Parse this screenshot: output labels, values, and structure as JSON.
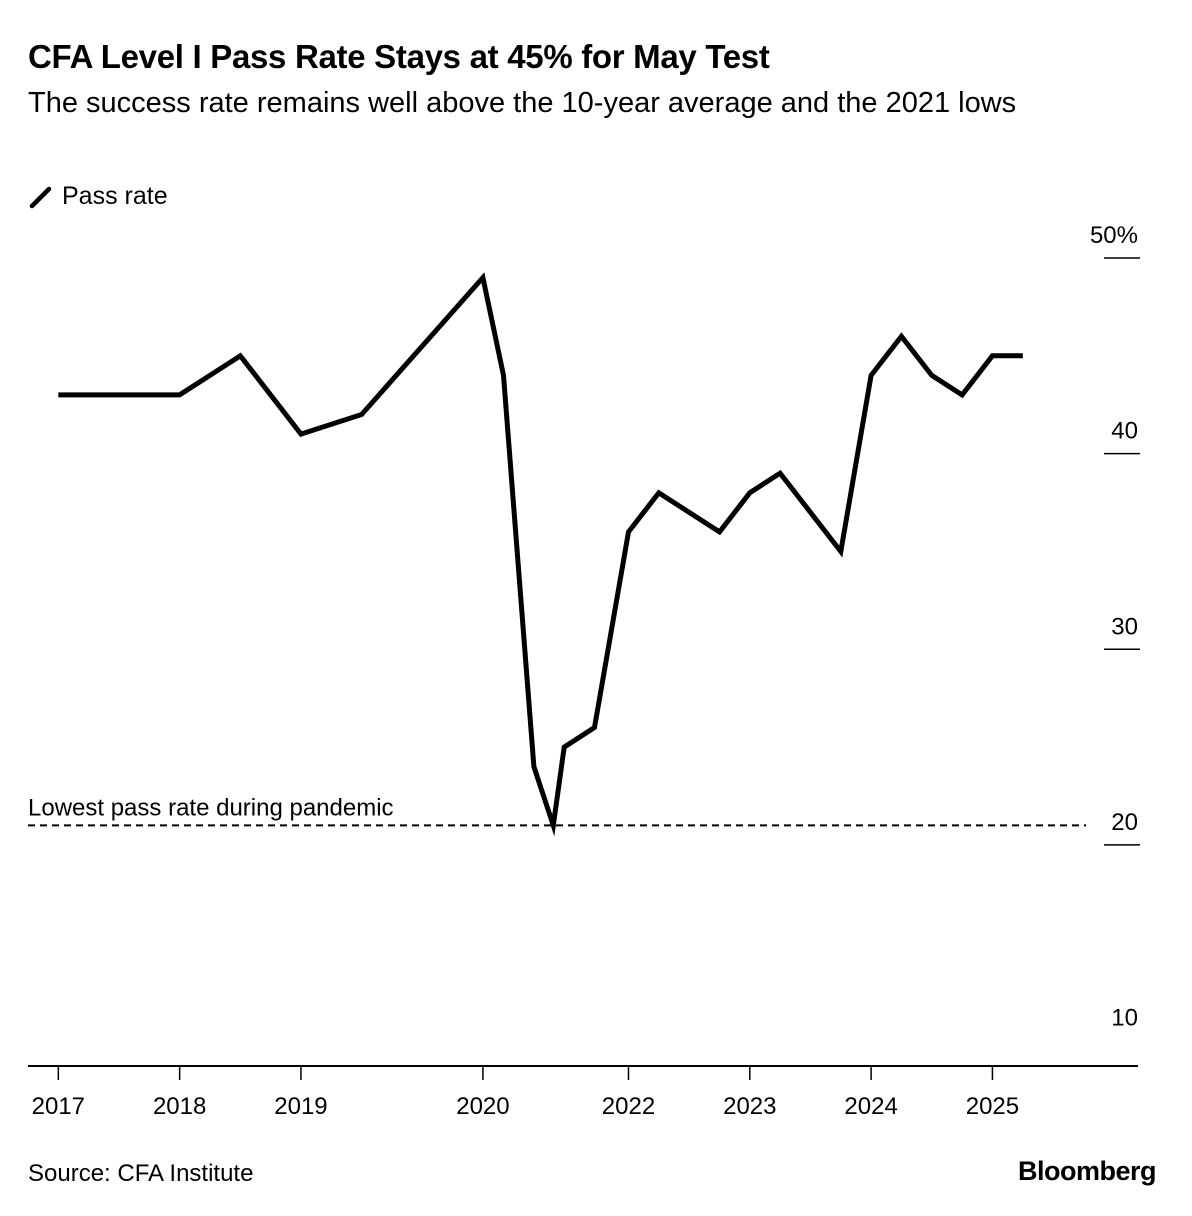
{
  "title": "CFA Level I Pass Rate Stays at 45% for May Test",
  "subtitle": "The success rate remains well above the 10-year average and the 2021 lows",
  "legend_label": "Pass rate",
  "source": "Source: CFA Institute",
  "brand": "Bloomberg",
  "chart_data": {
    "type": "line",
    "title": "CFA Level I Pass Rate Stays at 45% for May Test",
    "ylabel": "",
    "xlabel": "",
    "ylim": [
      8.7,
      50
    ],
    "xlim": [
      2016.75,
      2025.9
    ],
    "y_ticks": [
      {
        "value": 50,
        "label": "50%"
      },
      {
        "value": 40,
        "label": "40"
      },
      {
        "value": 30,
        "label": "30"
      },
      {
        "value": 20,
        "label": "20"
      },
      {
        "value": 10,
        "label": "10"
      }
    ],
    "x_ticks": [
      {
        "value": 2017,
        "label": "2017"
      },
      {
        "value": 2018,
        "label": "2018"
      },
      {
        "value": 2019,
        "label": "2019"
      },
      {
        "value": 2020.5,
        "label": "2020"
      },
      {
        "value": 2021.7,
        "label": "2022"
      },
      {
        "value": 2022.7,
        "label": "2023"
      },
      {
        "value": 2023.7,
        "label": "2024"
      },
      {
        "value": 2024.7,
        "label": "2025"
      }
    ],
    "series": [
      {
        "name": "Pass rate",
        "x": [
          2017.0,
          2018.0,
          2018.5,
          2019.0,
          2019.5,
          2020.5,
          2020.67,
          2020.92,
          2021.08,
          2021.17,
          2021.42,
          2021.7,
          2021.95,
          2022.45,
          2022.7,
          2022.95,
          2023.45,
          2023.7,
          2023.95,
          2024.2,
          2024.45,
          2024.7,
          2024.95
        ],
        "values": [
          43,
          43,
          45,
          41,
          42,
          49,
          44,
          24,
          21,
          25,
          26,
          36,
          38,
          36,
          38,
          39,
          35,
          44,
          46,
          44,
          43,
          45,
          45
        ]
      }
    ],
    "annotations": [
      {
        "type": "hline",
        "value": 21,
        "label": "Lowest pass rate during pandemic",
        "style": "dashed"
      }
    ],
    "grid": false,
    "legend_position": "top-left"
  }
}
